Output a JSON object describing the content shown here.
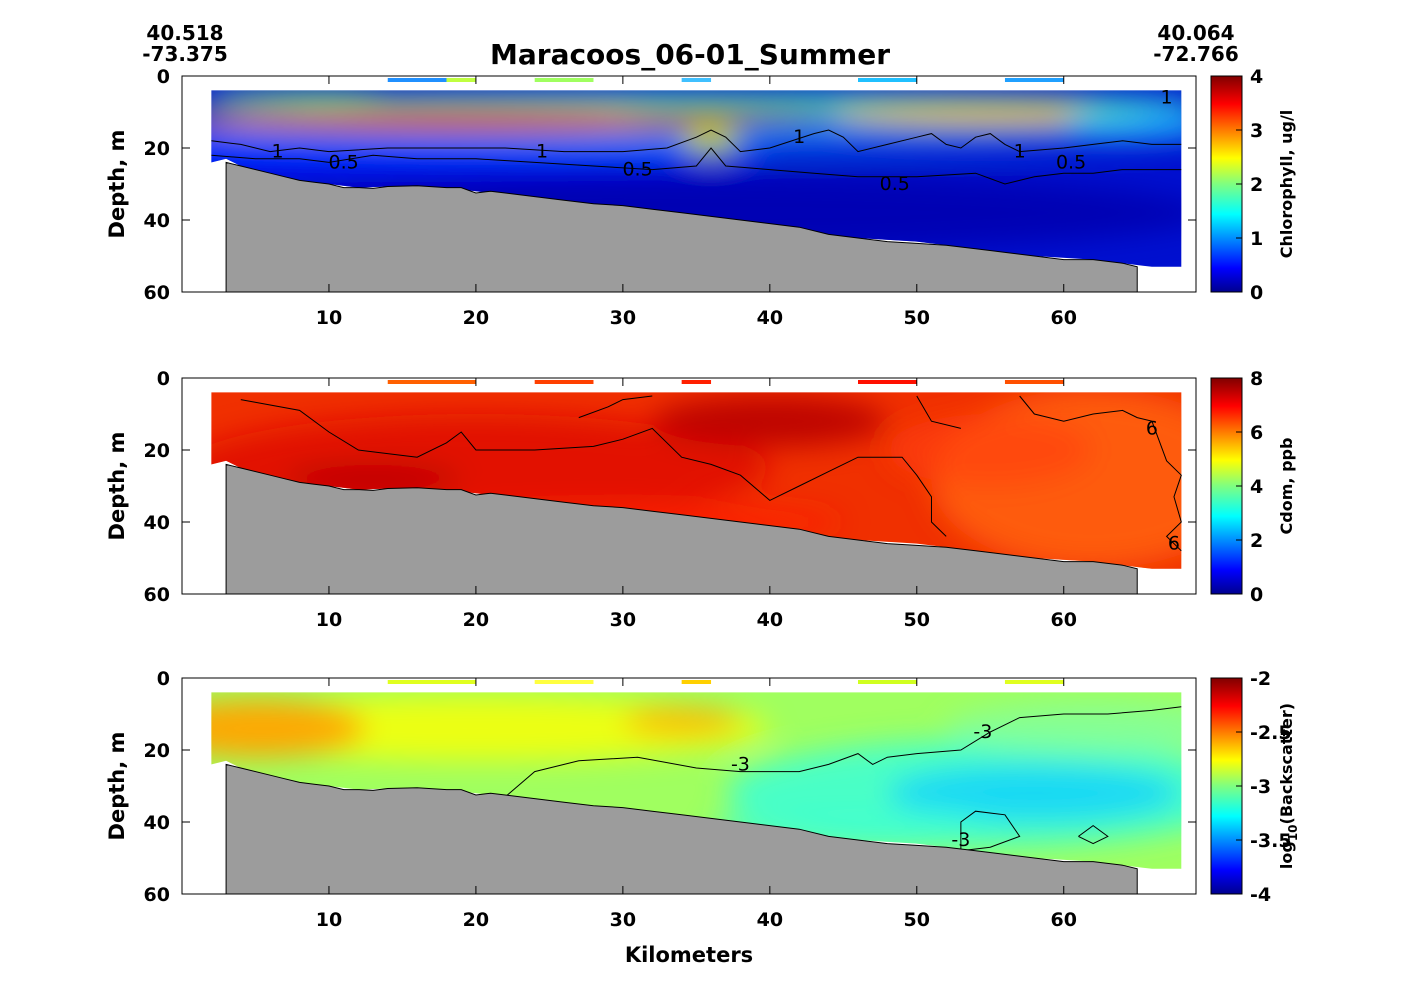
{
  "title": "Maracoos_06-01_Summer",
  "start_coord": {
    "lat": "40.518",
    "lon": "-73.375"
  },
  "end_coord": {
    "lat": "40.064",
    "lon": "-72.766"
  },
  "chart_data": [
    {
      "type": "heatmap",
      "variable": "chlorophyll",
      "ylabel": "Depth, m",
      "xlabel": "",
      "colorbar_label": "Chlorophyll, ug/l",
      "xlim": [
        0,
        69
      ],
      "ylim": [
        0,
        60
      ],
      "y_reversed": true,
      "xticks": [
        "10",
        "20",
        "30",
        "40",
        "50",
        "60"
      ],
      "yticks": [
        "0",
        "20",
        "40",
        "60"
      ],
      "clim": [
        0,
        4
      ],
      "colorbar_ticks": [
        "0",
        "1",
        "2",
        "3",
        "4"
      ],
      "colormap": "jet",
      "contour_labels": [
        {
          "text": "1",
          "x": 6.5,
          "y": 21
        },
        {
          "text": "0.5",
          "x": 11,
          "y": 24
        },
        {
          "text": "1",
          "x": 24.5,
          "y": 21
        },
        {
          "text": "0.5",
          "x": 31,
          "y": 26
        },
        {
          "text": "1",
          "x": 42,
          "y": 17
        },
        {
          "text": "0.5",
          "x": 48.5,
          "y": 30
        },
        {
          "text": "1",
          "x": 57,
          "y": 21
        },
        {
          "text": "0.5",
          "x": 60.5,
          "y": 24
        },
        {
          "text": "1",
          "x": 67,
          "y": 6
        }
      ]
    },
    {
      "type": "heatmap",
      "variable": "cdom",
      "ylabel": "Depth, m",
      "xlabel": "",
      "colorbar_label": "Cdom, ppb",
      "xlim": [
        0,
        69
      ],
      "ylim": [
        0,
        60
      ],
      "y_reversed": true,
      "xticks": [
        "10",
        "20",
        "30",
        "40",
        "50",
        "60"
      ],
      "yticks": [
        "0",
        "20",
        "40",
        "60"
      ],
      "clim": [
        0,
        8
      ],
      "colorbar_ticks": [
        "0",
        "2",
        "4",
        "6",
        "8"
      ],
      "colormap": "jet",
      "contour_labels": [
        {
          "text": "6",
          "x": 66,
          "y": 14
        },
        {
          "text": "6",
          "x": 67.5,
          "y": 46
        }
      ]
    },
    {
      "type": "heatmap",
      "variable": "backscatter",
      "ylabel": "Depth, m",
      "xlabel": "Kilometers",
      "colorbar_label": "log10(Backscatter)",
      "xlim": [
        0,
        69
      ],
      "ylim": [
        0,
        60
      ],
      "y_reversed": true,
      "xticks": [
        "10",
        "20",
        "30",
        "40",
        "50",
        "60"
      ],
      "yticks": [
        "0",
        "20",
        "40",
        "60"
      ],
      "clim": [
        -4,
        -2
      ],
      "colorbar_ticks": [
        "-4",
        "-3.5",
        "-3",
        "-2.5",
        "-2"
      ],
      "colormap": "jet",
      "contour_labels": [
        {
          "text": "-3",
          "x": 38,
          "y": 24
        },
        {
          "text": "-3",
          "x": 54.5,
          "y": 15
        },
        {
          "text": "-3",
          "x": 53,
          "y": 45
        }
      ]
    }
  ]
}
